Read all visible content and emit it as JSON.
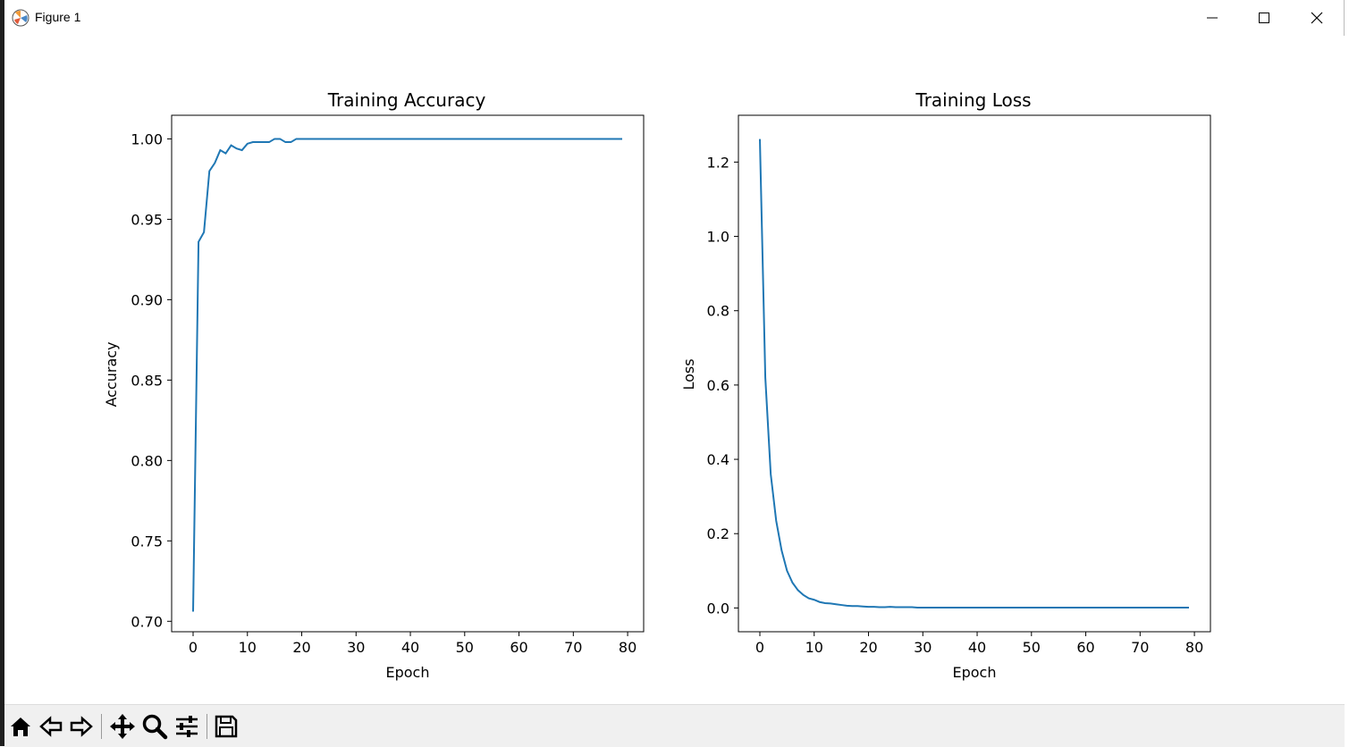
{
  "window": {
    "title": "Figure 1"
  },
  "toolbar": {
    "buttons": [
      "home-icon",
      "back-icon",
      "forward-icon",
      "pan-icon",
      "zoom-icon",
      "configure-subplots-icon",
      "save-icon"
    ]
  },
  "colors": {
    "line": "#1f77b4",
    "toolbar_bg": "#f0f0f0"
  },
  "chart_data": [
    {
      "type": "line",
      "title": "Training Accuracy",
      "xlabel": "Epoch",
      "ylabel": "Accuracy",
      "xlim": [
        -3.95,
        82.95
      ],
      "ylim": [
        0.6935,
        1.0147
      ],
      "xticks": [
        0,
        10,
        20,
        30,
        40,
        50,
        60,
        70,
        80
      ],
      "yticks": [
        0.7,
        0.75,
        0.8,
        0.85,
        0.9,
        0.95,
        1.0
      ],
      "ytick_labels": [
        "0.70",
        "0.75",
        "0.80",
        "0.85",
        "0.90",
        "0.95",
        "1.00"
      ],
      "series": [
        {
          "x": [
            0,
            1,
            2,
            3,
            4,
            5,
            6,
            7,
            8,
            9,
            10,
            11,
            12,
            13,
            14,
            15,
            16,
            17,
            18,
            19,
            20,
            21,
            22,
            23,
            24,
            25,
            26,
            27,
            28,
            29,
            30,
            31,
            32,
            33,
            34,
            35,
            36,
            37,
            38,
            39,
            40,
            41,
            42,
            43,
            44,
            45,
            46,
            47,
            48,
            49,
            50,
            51,
            52,
            53,
            54,
            55,
            56,
            57,
            58,
            59,
            60,
            61,
            62,
            63,
            64,
            65,
            66,
            67,
            68,
            69,
            70,
            71,
            72,
            73,
            74,
            75,
            76,
            77,
            78,
            79
          ],
          "y": [
            0.706,
            0.936,
            0.942,
            0.98,
            0.985,
            0.993,
            0.991,
            0.996,
            0.994,
            0.993,
            0.997,
            0.998,
            0.998,
            0.998,
            0.998,
            1.0,
            1.0,
            0.998,
            0.998,
            1.0,
            1.0,
            1.0,
            1.0,
            1.0,
            1.0,
            1.0,
            1.0,
            1.0,
            1.0,
            1.0,
            1.0,
            1.0,
            1.0,
            1.0,
            1.0,
            1.0,
            1.0,
            1.0,
            1.0,
            1.0,
            1.0,
            1.0,
            1.0,
            1.0,
            1.0,
            1.0,
            1.0,
            1.0,
            1.0,
            1.0,
            1.0,
            1.0,
            1.0,
            1.0,
            1.0,
            1.0,
            1.0,
            1.0,
            1.0,
            1.0,
            1.0,
            1.0,
            1.0,
            1.0,
            1.0,
            1.0,
            1.0,
            1.0,
            1.0,
            1.0,
            1.0,
            1.0,
            1.0,
            1.0,
            1.0,
            1.0,
            1.0,
            1.0,
            1.0,
            1.0
          ]
        }
      ]
    },
    {
      "type": "line",
      "title": "Training Loss",
      "xlabel": "Epoch",
      "ylabel": "Loss",
      "xlim": [
        -3.95,
        82.95
      ],
      "ylim": [
        -0.064,
        1.326
      ],
      "xticks": [
        0,
        10,
        20,
        30,
        40,
        50,
        60,
        70,
        80
      ],
      "yticks": [
        0.0,
        0.2,
        0.4,
        0.6,
        0.8,
        1.0,
        1.2
      ],
      "ytick_labels": [
        "0.0",
        "0.2",
        "0.4",
        "0.6",
        "0.8",
        "1.0",
        "1.2"
      ],
      "series": [
        {
          "x": [
            0,
            1,
            2,
            3,
            4,
            5,
            6,
            7,
            8,
            9,
            10,
            11,
            12,
            13,
            14,
            15,
            16,
            17,
            18,
            19,
            20,
            21,
            22,
            23,
            24,
            25,
            26,
            27,
            28,
            29,
            30,
            31,
            32,
            33,
            34,
            35,
            36,
            37,
            38,
            39,
            40,
            41,
            42,
            43,
            44,
            45,
            46,
            47,
            48,
            49,
            50,
            51,
            52,
            53,
            54,
            55,
            56,
            57,
            58,
            59,
            60,
            61,
            62,
            63,
            64,
            65,
            66,
            67,
            68,
            69,
            70,
            71,
            72,
            73,
            74,
            75,
            76,
            77,
            78,
            79
          ],
          "y": [
            1.262,
            0.62,
            0.36,
            0.235,
            0.155,
            0.1,
            0.068,
            0.048,
            0.035,
            0.026,
            0.022,
            0.016,
            0.013,
            0.012,
            0.01,
            0.008,
            0.006,
            0.005,
            0.005,
            0.004,
            0.003,
            0.003,
            0.002,
            0.002,
            0.003,
            0.002,
            0.002,
            0.002,
            0.002,
            0.001,
            0.001,
            0.001,
            0.001,
            0.001,
            0.001,
            0.001,
            0.001,
            0.001,
            0.001,
            0.001,
            0.001,
            0.001,
            0.001,
            0.001,
            0.001,
            0.001,
            0.001,
            0.001,
            0.001,
            0.001,
            0.001,
            0.001,
            0.001,
            0.001,
            0.001,
            0.001,
            0.001,
            0.001,
            0.001,
            0.001,
            0.001,
            0.001,
            0.001,
            0.001,
            0.001,
            0.001,
            0.001,
            0.001,
            0.001,
            0.001,
            0.001,
            0.001,
            0.001,
            0.001,
            0.001,
            0.001,
            0.001,
            0.001,
            0.001,
            0.001
          ]
        }
      ]
    }
  ]
}
